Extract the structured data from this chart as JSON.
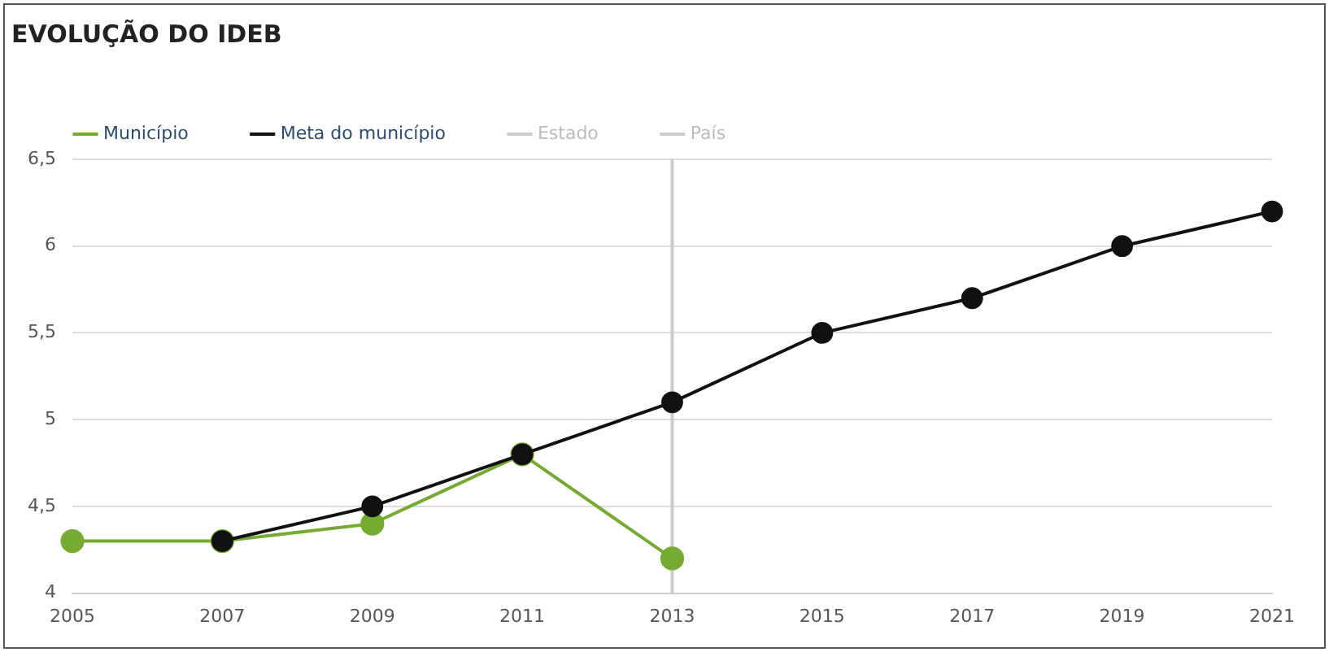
{
  "chart_data": {
    "type": "line",
    "title": "EVOLUÇÃO DO IDEB",
    "categories": [
      "2005",
      "2007",
      "2009",
      "2011",
      "2013",
      "2015",
      "2017",
      "2019",
      "2021"
    ],
    "series": [
      {
        "name": "Município",
        "color": "#77aa33",
        "values": [
          4.3,
          4.3,
          4.4,
          4.8,
          4.2,
          null,
          null,
          null,
          null
        ]
      },
      {
        "name": "Meta do município",
        "color": "#111111",
        "values": [
          null,
          4.3,
          4.5,
          4.8,
          5.1,
          5.5,
          5.7,
          6.0,
          6.2
        ]
      },
      {
        "name": "Estado",
        "color": "#cccccc",
        "values": [
          null,
          null,
          null,
          null,
          null,
          null,
          null,
          null,
          null
        ]
      },
      {
        "name": "País",
        "color": "#cccccc",
        "values": [
          null,
          null,
          null,
          null,
          null,
          null,
          null,
          null,
          null
        ]
      }
    ],
    "ylim": [
      4,
      6.5
    ],
    "yticks": [
      4,
      {
        "value": 4.5,
        "label": "4,5"
      },
      5,
      {
        "value": 5.5,
        "label": "5,5"
      },
      6,
      {
        "value": 6.5,
        "label": "6,5"
      }
    ],
    "ref_lines": [
      {
        "axis": "x",
        "value": "2013",
        "color": "#cccccc"
      }
    ],
    "grid": "y",
    "legend": "top left",
    "marker": "circle",
    "line_style": "solid"
  }
}
